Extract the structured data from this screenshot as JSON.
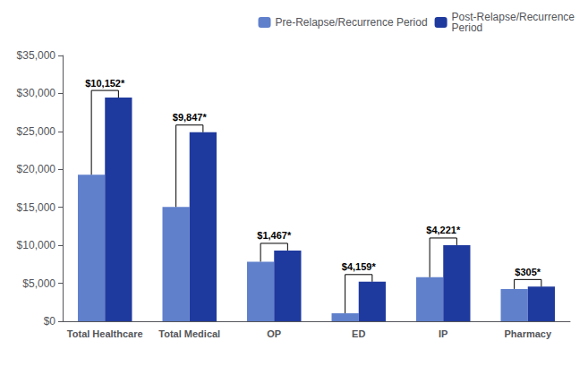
{
  "chart_data": {
    "type": "bar",
    "categories": [
      "Total Healthcare",
      "Total Medical",
      "OP",
      "ED",
      "IP",
      "Pharmacy"
    ],
    "series": [
      {
        "name": "Pre-Relapse/Recurrence Period",
        "color": "#6080cc",
        "values": [
          19300,
          15050,
          7850,
          1050,
          5800,
          4250
        ]
      },
      {
        "name": "Post-Relapse/Recurrence\nPeriod",
        "color": "#1f3a9e",
        "values": [
          29452,
          24897,
          9317,
          5209,
          10021,
          4555
        ]
      }
    ],
    "annotations": [
      "$10,152*",
      "$9,847*",
      "$1,467*",
      "$4,159*",
      "$4,221*",
      "$305*"
    ],
    "ylim": [
      0,
      35000
    ],
    "yticks": [
      {
        "value": 0,
        "label": "$0"
      },
      {
        "value": 5000,
        "label": "$5,000"
      },
      {
        "value": 10000,
        "label": "$10,000"
      },
      {
        "value": 15000,
        "label": "$15,000"
      },
      {
        "value": 20000,
        "label": "$20,000"
      },
      {
        "value": 25000,
        "label": "$25,000"
      },
      {
        "value": 30000,
        "label": "$30,000"
      },
      {
        "value": 35000,
        "label": "$35,000"
      }
    ],
    "grid": false,
    "legend": "upper right"
  }
}
